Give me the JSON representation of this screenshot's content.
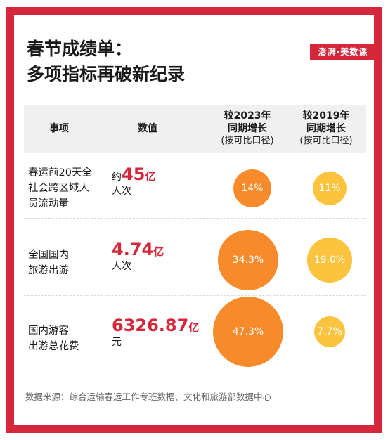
{
  "title": {
    "line1": "春节成绩单：",
    "line2": "多项指标再破新纪录"
  },
  "logo_text": "澎湃·美数课",
  "headers": {
    "item": "事项",
    "value": "数值",
    "vs2023": [
      "较2023年",
      "同期增长",
      "(按可比口径)"
    ],
    "vs2019": [
      "较2019年",
      "同期增长",
      "(按可比口径)"
    ]
  },
  "chart_data": {
    "type": "table",
    "title": "春节成绩单：多项指标再破新纪录",
    "columns": [
      "事项",
      "数值",
      "较2023年同期增长(按可比口径)",
      "较2019年同期增长(按可比口径)"
    ],
    "rows": [
      {
        "item": [
          "春运前20天全",
          "社会跨区域人",
          "员流动量"
        ],
        "prefix": "约",
        "number": "45",
        "unit": "亿",
        "unit2": "人次",
        "growth_2023": 14,
        "growth_2023_label": "14%",
        "growth_2019": 11,
        "growth_2019_label": "11%"
      },
      {
        "item": [
          "全国国内",
          "旅游出游"
        ],
        "prefix": "",
        "number": "4.74",
        "unit": "亿",
        "unit2": "人次",
        "growth_2023": 34.3,
        "growth_2023_label": "34.3%",
        "growth_2019": 19.0,
        "growth_2019_label": "19.0%"
      },
      {
        "item": [
          "国内游客",
          "出游总花费"
        ],
        "prefix": "",
        "number": "6326.87",
        "unit": "亿",
        "unit2": "元",
        "growth_2023": 47.3,
        "growth_2023_label": "47.3%",
        "growth_2019": 7.7,
        "growth_2019_label": "7.7%"
      }
    ],
    "colors": {
      "vs2023": "#f78b2c",
      "vs2019": "#fcc43e",
      "accent": "#d4283a"
    }
  },
  "source": "数据来源：综合运输春运工作专班数据、文化和旅游部数据中心"
}
